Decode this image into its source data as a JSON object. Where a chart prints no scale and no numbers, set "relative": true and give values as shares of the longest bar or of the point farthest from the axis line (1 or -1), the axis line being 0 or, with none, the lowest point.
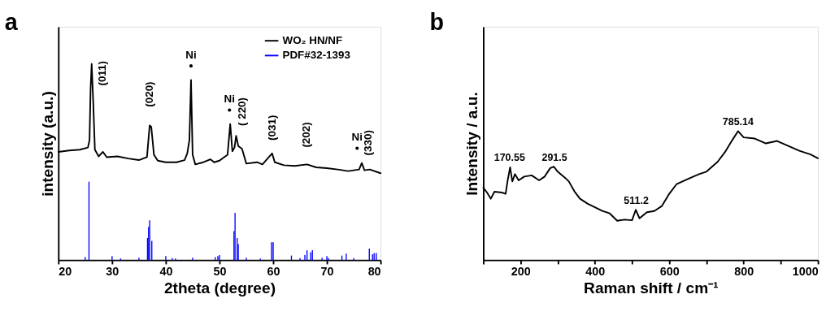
{
  "chart_data": [
    {
      "type": "line",
      "title": "a",
      "xlabel": "2theta (degree)",
      "ylabel": "intensity (a.u.)",
      "relative": true,
      "xlim": [
        20,
        80
      ],
      "xticks": [
        20,
        30,
        40,
        50,
        60,
        70,
        80
      ],
      "tick_labels": "x",
      "legend": "top right",
      "grid": false,
      "series": [
        {
          "name": "WO₂ HN/NF",
          "type": "line",
          "color": "#000000",
          "x": [
            20,
            22,
            24,
            25.5,
            25.8,
            26.0,
            26.2,
            26.5,
            26.8,
            27.5,
            28.3,
            29,
            31,
            33,
            35,
            36.5,
            37,
            37.3,
            37.8,
            38.5,
            40,
            42,
            43.5,
            44,
            44.4,
            44.7,
            45,
            45.5,
            47,
            48.3,
            49,
            50,
            51.5,
            52.0,
            52.4,
            52.8,
            53.1,
            53.5,
            54.2,
            55,
            57,
            58,
            59.8,
            60.3,
            62,
            64,
            66.3,
            68,
            70,
            72,
            74,
            76,
            76.5,
            77,
            78,
            80
          ],
          "values": [
            0.552,
            0.559,
            0.563,
            0.574,
            0.612,
            0.874,
            1.0,
            0.799,
            0.563,
            0.529,
            0.552,
            0.525,
            0.529,
            0.518,
            0.51,
            0.525,
            0.687,
            0.679,
            0.537,
            0.507,
            0.499,
            0.499,
            0.51,
            0.544,
            0.612,
            0.919,
            0.537,
            0.488,
            0.499,
            0.514,
            0.499,
            0.507,
            0.537,
            0.694,
            0.555,
            0.574,
            0.634,
            0.582,
            0.567,
            0.492,
            0.499,
            0.488,
            0.544,
            0.499,
            0.484,
            0.48,
            0.488,
            0.473,
            0.469,
            0.462,
            0.454,
            0.462,
            0.495,
            0.458,
            0.462,
            0.443
          ]
        },
        {
          "name": "PDF#32-1393",
          "type": "bar",
          "color": "#0000ff",
          "x": [
            25,
            25.7,
            30,
            31.6,
            35,
            36.6,
            36.8,
            37.0,
            37.4,
            40,
            41.2,
            41.8,
            45,
            49.2,
            49.7,
            50,
            52.7,
            52.9,
            53.3,
            53.5,
            55,
            57.6,
            59.7,
            60.0,
            63.4,
            65,
            65.9,
            66.3,
            67,
            67.3,
            69.1,
            70.0,
            70.3,
            72.8,
            73.6,
            75,
            77.9,
            78.5,
            78.8,
            79.2
          ],
          "values": [
            0.015,
            0.4,
            0.02,
            0.008,
            0.012,
            0.113,
            0.169,
            0.203,
            0.098,
            0.02,
            0.01,
            0.008,
            0.012,
            0.015,
            0.02,
            0.025,
            0.148,
            0.241,
            0.113,
            0.081,
            0.012,
            0.008,
            0.091,
            0.091,
            0.023,
            0.01,
            0.025,
            0.05,
            0.04,
            0.05,
            0.012,
            0.02,
            0.01,
            0.023,
            0.033,
            0.01,
            0.059,
            0.03,
            0.036,
            0.036
          ]
        }
      ],
      "annotations": [
        {
          "text": "Ni",
          "x": 44.7,
          "y": 0.919
        },
        {
          "text": "Ni",
          "x": 52.0,
          "y": 0.694
        },
        {
          "text": "Ni",
          "x": 76.5,
          "y": 0.495
        },
        {
          "text": "(011)",
          "x": 26.2,
          "y": 1.0
        },
        {
          "text": "(020)",
          "x": 37,
          "y": 0.687
        },
        {
          "text": "( 220)",
          "x": 53.1,
          "y": 0.634
        },
        {
          "text": "(031)",
          "x": 59.8,
          "y": 0.544
        },
        {
          "text": "(202)",
          "x": 66.3,
          "y": 0.488
        },
        {
          "text": "(330)",
          "x": 76.5,
          "y": 0.495
        }
      ]
    },
    {
      "type": "line",
      "title": "b",
      "xlabel": "Raman shift  / cm⁻¹",
      "ylabel": "Intensity / a.u.",
      "relative": true,
      "xlim": [
        100,
        1000
      ],
      "xticks": [
        {
          "value": 100,
          "label": null
        },
        200,
        {
          "value": 300,
          "label": null
        },
        400,
        {
          "value": 500,
          "label": null
        },
        600,
        {
          "value": 700,
          "label": null
        },
        800,
        {
          "value": 900,
          "label": null
        },
        1000
      ],
      "tick_labels": "x",
      "grid": false,
      "series": [
        {
          "color": "#000000",
          "x": [
            100,
            110,
            120,
            130,
            150,
            160,
            165,
            172,
            178,
            185,
            195,
            210,
            230,
            250,
            265,
            280,
            290,
            300,
            320,
            330,
            345,
            360,
            380,
            400,
            420,
            440,
            460,
            480,
            500,
            510,
            520,
            540,
            560,
            580,
            600,
            620,
            650,
            680,
            700,
            730,
            750,
            770,
            785,
            800,
            830,
            860,
            890,
            920,
            950,
            980,
            1000
          ],
          "values": [
            0.562,
            0.524,
            0.476,
            0.53,
            0.524,
            0.514,
            0.61,
            0.72,
            0.61,
            0.667,
            0.619,
            0.648,
            0.657,
            0.619,
            0.648,
            0.714,
            0.724,
            0.686,
            0.638,
            0.61,
            0.533,
            0.476,
            0.438,
            0.41,
            0.381,
            0.362,
            0.305,
            0.314,
            0.309,
            0.39,
            0.324,
            0.371,
            0.381,
            0.419,
            0.514,
            0.59,
            0.629,
            0.667,
            0.686,
            0.762,
            0.838,
            0.933,
            1.0,
            0.952,
            0.943,
            0.905,
            0.924,
            0.886,
            0.848,
            0.819,
            0.79
          ]
        }
      ],
      "annotations": [
        {
          "text": "170.55",
          "x": 170.55,
          "y": 0.72
        },
        {
          "text": "291.5",
          "x": 291.5,
          "y": 0.724
        },
        {
          "text": "511.2",
          "x": 511.2,
          "y": 0.39
        },
        {
          "text": "785.14",
          "x": 785.14,
          "y": 1.0
        }
      ]
    }
  ]
}
